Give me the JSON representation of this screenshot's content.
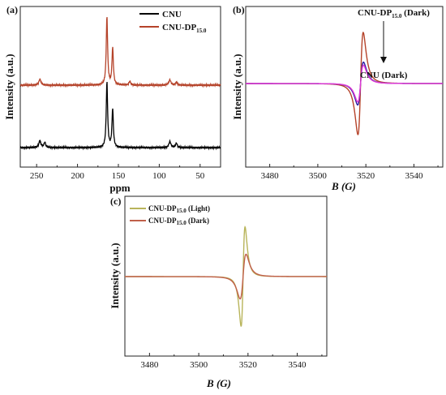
{
  "chart_data": [
    {
      "panel": "(a)",
      "type": "line",
      "xlabel": "ppm",
      "ylabel": "Intensity (a.u.)",
      "xlim": [
        270,
        25
      ],
      "x_reversed": true,
      "x_ticks": [
        250,
        200,
        150,
        100,
        50
      ],
      "y_ticks": [],
      "legend": "top-right",
      "series": [
        {
          "name": "CNU",
          "color": "#000000",
          "peaks": [
            {
              "x": 246,
              "height": 0.09,
              "width": 1.5
            },
            {
              "x": 240,
              "height": 0.07,
              "width": 1.2
            },
            {
              "x": 164,
              "height": 0.88,
              "width": 1.0
            },
            {
              "x": 157,
              "height": 0.52,
              "width": 1.0
            },
            {
              "x": 87,
              "height": 0.08,
              "width": 1.5
            },
            {
              "x": 79,
              "height": 0.06,
              "width": 1.2
            }
          ]
        },
        {
          "name": "CNU-DP15.0",
          "name_main": "CNU-DP",
          "name_sub": "15.0",
          "color": "#B5432A",
          "peaks": [
            {
              "x": 246,
              "height": 0.08,
              "width": 1.5
            },
            {
              "x": 164,
              "height": 0.92,
              "width": 1.0
            },
            {
              "x": 157,
              "height": 0.5,
              "width": 1.0
            },
            {
              "x": 136,
              "height": 0.05,
              "width": 1.3
            },
            {
              "x": 87,
              "height": 0.07,
              "width": 1.5
            },
            {
              "x": 79,
              "height": 0.04,
              "width": 1.2
            }
          ]
        }
      ]
    },
    {
      "panel": "(b)",
      "type": "line",
      "xlabel": "B (G)",
      "xlabel_main": "B",
      "xlabel_unit": "(G)",
      "ylabel": "Intensity (a.u.)",
      "xlim": [
        3470,
        3552
      ],
      "x_ticks": [
        3480,
        3500,
        3520,
        3540
      ],
      "y_ticks": [],
      "annotations": [
        "CNU-DP15.0 (Dark)",
        "CNU (Dark)"
      ],
      "annotation_main": "CNU-DP",
      "annotation_sub": "15.0",
      "annotation_tail": " (Dark)",
      "annotation_cnu": "CNU (Dark)",
      "series": [
        {
          "name": "CNU-DP15.0 (Dark)",
          "color": "#B5432A",
          "center": 3517.8,
          "width": 1.1,
          "amplitude": 1.0,
          "baseline": 0.0
        },
        {
          "name": "CNU (Dark)",
          "color": "#2a1aa0",
          "center": 3517.8,
          "width": 1.2,
          "amplitude": 0.42,
          "baseline": 0.0
        },
        {
          "name": "magenta trace",
          "color": "#e23ad6",
          "center": 3517.8,
          "width": 1.2,
          "amplitude": 0.36,
          "baseline": 0.0
        }
      ]
    },
    {
      "panel": "(c)",
      "type": "line",
      "xlabel": "B (G)",
      "xlabel_main": "B",
      "xlabel_unit": "(G)",
      "ylabel": "Intensity (a.u.)",
      "xlim": [
        3470,
        3552
      ],
      "x_ticks": [
        3480,
        3500,
        3520,
        3540
      ],
      "y_ticks": [],
      "legend": "top-left",
      "series": [
        {
          "name": "CNU-DP15.0 (Light)",
          "name_main": "CNU-DP",
          "name_sub": "15.0",
          "name_tail": " (Light)",
          "color": "#B8B45A",
          "center": 3518.0,
          "width": 0.8,
          "amplitude": 1.0,
          "baseline": 0.0
        },
        {
          "name": "CNU-DP15.0 (Dark)",
          "name_main": "CNU-DP",
          "name_sub": "15.0",
          "name_tail": " (Dark)",
          "color": "#C0604A",
          "center": 3518.0,
          "width": 1.2,
          "amplitude": 0.45,
          "baseline": 0.0
        }
      ]
    }
  ]
}
